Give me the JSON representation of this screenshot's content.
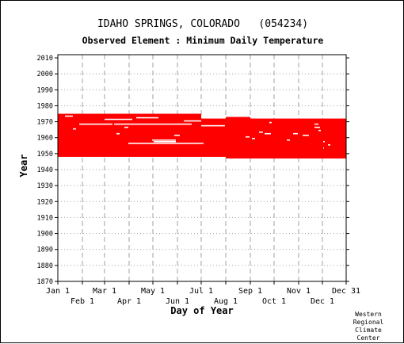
{
  "header": {
    "title": "IDAHO SPRINGS, COLORADO   (054234)",
    "subtitle": "Observed Element : Minimum Daily Temperature"
  },
  "credit": [
    "Western",
    "Regional",
    "Climate",
    "Center"
  ],
  "colors": {
    "data": "#ff0000",
    "grid": "#a0a0a0",
    "axis": "#000000"
  },
  "chart_data": {
    "type": "area",
    "xlabel": "Day of Year",
    "ylabel": "Year",
    "xlim": [
      1,
      365
    ],
    "ylim": [
      1870,
      2012
    ],
    "grid": true,
    "x_ticks_upper": [
      {
        "label": "Jan 1",
        "day": 1
      },
      {
        "label": "Mar 1",
        "day": 60
      },
      {
        "label": "May 1",
        "day": 121
      },
      {
        "label": "Jul 1",
        "day": 182
      },
      {
        "label": "Sep 1",
        "day": 244
      },
      {
        "label": "Nov 1",
        "day": 305
      },
      {
        "label": "Dec 31",
        "day": 365
      }
    ],
    "x_ticks_lower": [
      {
        "label": "Feb 1",
        "day": 32
      },
      {
        "label": "Apr 1",
        "day": 91
      },
      {
        "label": "Jun 1",
        "day": 152
      },
      {
        "label": "Aug 1",
        "day": 213
      },
      {
        "label": "Oct 1",
        "day": 274
      },
      {
        "label": "Dec 1",
        "day": 335
      }
    ],
    "y_ticks": [
      "2010",
      "2000",
      "1990",
      "1980",
      "1970",
      "1960",
      "1950",
      "1940",
      "1930",
      "1920",
      "1910",
      "1900",
      "1890",
      "1880",
      "1870"
    ],
    "observed_periods": [
      {
        "day_start": 1,
        "day_end": 182,
        "year_start": 1948,
        "year_end": 1974
      },
      {
        "day_start": 182,
        "day_end": 213,
        "year_start": 1948,
        "year_end": 1971
      },
      {
        "day_start": 213,
        "day_end": 244,
        "year_start": 1947,
        "year_end": 1972
      },
      {
        "day_start": 244,
        "day_end": 335,
        "year_start": 1947,
        "year_end": 1971
      },
      {
        "day_start": 335,
        "day_end": 365,
        "year_start": 1947,
        "year_end": 1971
      }
    ],
    "missing_data": [
      {
        "year": 1973,
        "day_start": 10,
        "day_end": 20
      },
      {
        "year": 1972,
        "day_start": 100,
        "day_end": 128
      },
      {
        "year": 1971,
        "day_start": 60,
        "day_end": 95
      },
      {
        "year": 1970,
        "day_start": 160,
        "day_end": 182
      },
      {
        "year": 1968,
        "day_start": 28,
        "day_end": 70
      },
      {
        "year": 1968,
        "day_start": 72,
        "day_end": 170
      },
      {
        "year": 1967,
        "day_start": 182,
        "day_end": 212
      },
      {
        "year": 1966,
        "day_start": 85,
        "day_end": 90
      },
      {
        "year": 1965,
        "day_start": 20,
        "day_end": 24
      },
      {
        "year": 1962,
        "day_start": 75,
        "day_end": 79
      },
      {
        "year": 1961,
        "day_start": 148,
        "day_end": 155
      },
      {
        "year": 1958,
        "day_start": 120,
        "day_end": 150
      },
      {
        "year": 1957,
        "day_start": 122,
        "day_end": 150
      },
      {
        "year": 1956,
        "day_start": 90,
        "day_end": 185
      },
      {
        "year": 1973,
        "day_start": 214,
        "day_end": 240
      },
      {
        "year": 1972,
        "day_start": 305,
        "day_end": 328
      },
      {
        "year": 1969,
        "day_start": 268,
        "day_end": 271
      },
      {
        "year": 1968,
        "day_start": 325,
        "day_end": 330
      },
      {
        "year": 1966,
        "day_start": 325,
        "day_end": 332
      },
      {
        "year": 1964,
        "day_start": 330,
        "day_end": 333
      },
      {
        "year": 1963,
        "day_start": 255,
        "day_end": 260
      },
      {
        "year": 1962,
        "day_start": 262,
        "day_end": 270
      },
      {
        "year": 1962,
        "day_start": 298,
        "day_end": 304
      },
      {
        "year": 1961,
        "day_start": 310,
        "day_end": 318
      },
      {
        "year": 1960,
        "day_start": 238,
        "day_end": 243
      },
      {
        "year": 1959,
        "day_start": 246,
        "day_end": 250
      },
      {
        "year": 1958,
        "day_start": 290,
        "day_end": 294
      },
      {
        "year": 1957,
        "day_start": 336,
        "day_end": 338
      },
      {
        "year": 1955,
        "day_start": 342,
        "day_end": 345
      },
      {
        "year": 1953,
        "day_start": 336,
        "day_end": 337
      }
    ]
  }
}
